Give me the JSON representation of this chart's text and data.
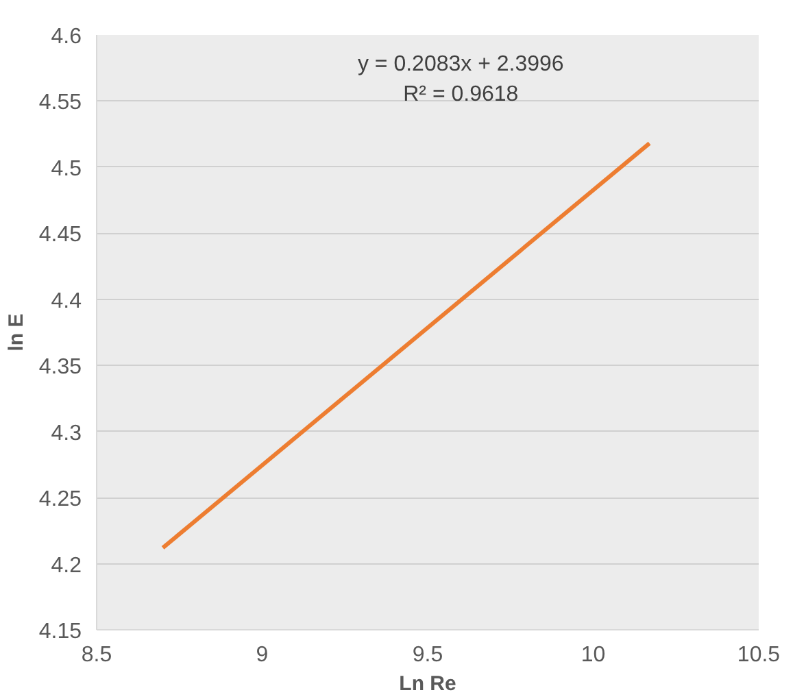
{
  "chart_data": {
    "type": "line",
    "xlabel": "Ln Re",
    "ylabel": "ln E",
    "x": [
      8.7,
      10.17
    ],
    "series": [
      {
        "color": "#ed7d31",
        "values": [
          4.212,
          4.518
        ]
      }
    ],
    "xlim": [
      8.5,
      10.5
    ],
    "xticks": [
      8.5,
      9,
      9.5,
      10,
      10.5
    ],
    "ylim": [
      4.15,
      4.6
    ],
    "yticks": [
      4.15,
      4.2,
      4.25,
      4.3,
      4.35,
      4.4,
      4.45,
      4.5,
      4.55,
      4.6
    ],
    "annotations": [
      "y = 0.2083x + 2.3996",
      "R² = 0.9618"
    ],
    "grid": "y",
    "line_style": "solid"
  }
}
